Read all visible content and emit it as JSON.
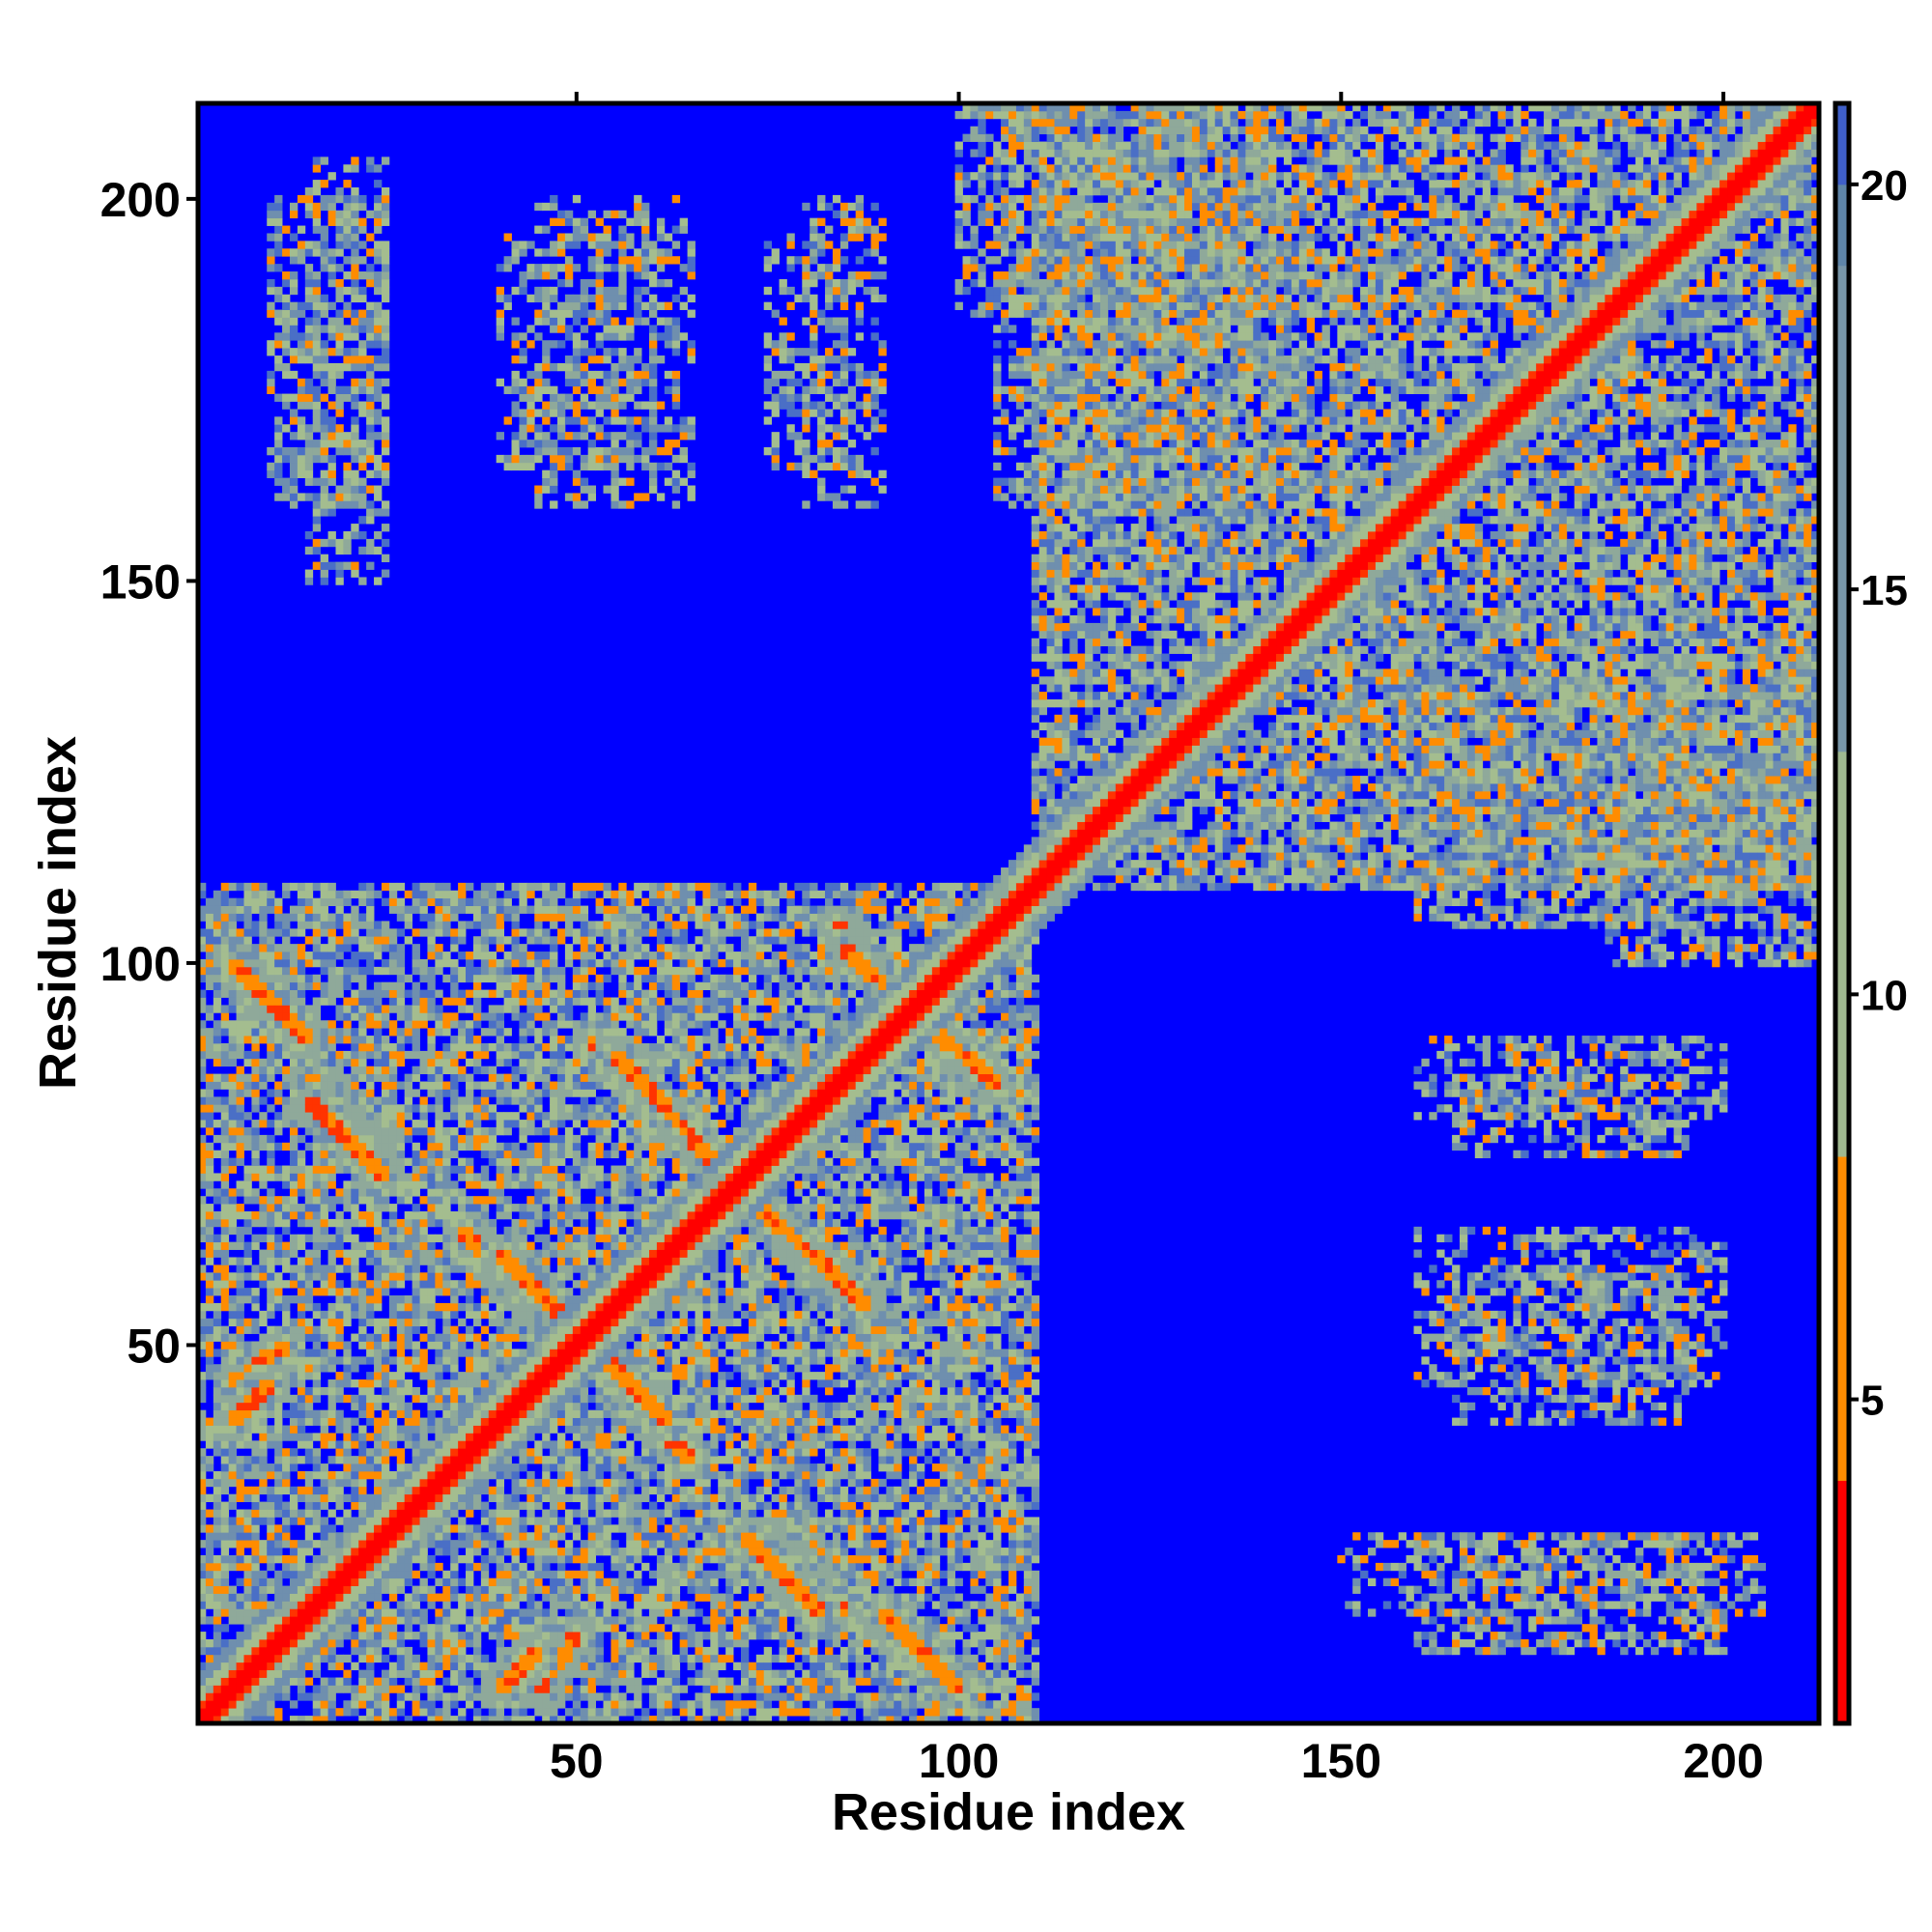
{
  "chart_data": {
    "type": "heatmap",
    "xlabel": "Residue index",
    "ylabel": "Residue index",
    "xlim": [
      1,
      212
    ],
    "ylim": [
      1,
      212
    ],
    "x_ticks": [
      50,
      100,
      150,
      200
    ],
    "y_ticks": [
      50,
      100,
      150,
      200
    ],
    "colorbar": {
      "range": [
        1,
        21
      ],
      "ticks": [
        5,
        10,
        15,
        20
      ],
      "colors": [
        "#ff0000",
        "#ff8c00",
        "#9fb890",
        "#5f85a8",
        "#0000ff"
      ]
    },
    "matrix_description_cells": [
      {
        "diagonal_band": "values 1-8 along i≈j, widening to ~12 in grey-green halo"
      },
      {
        "region_x": [
          1,
          110
        ],
        "region_y": [
          1,
          110
        ],
        "pattern": "dense contacts, antiparallel strands"
      },
      {
        "region_x": [
          110,
          212
        ],
        "region_y": [
          110,
          212
        ],
        "pattern": "dense contacts"
      },
      {
        "region_x": [
          15,
          90
        ],
        "region_y": [
          150,
          205
        ],
        "pattern": "sparse columns of contacts"
      },
      {
        "region_x": [
          160,
          200
        ],
        "region_y": [
          10,
          90
        ],
        "pattern": "sparse horizontal contact bands"
      }
    ]
  }
}
